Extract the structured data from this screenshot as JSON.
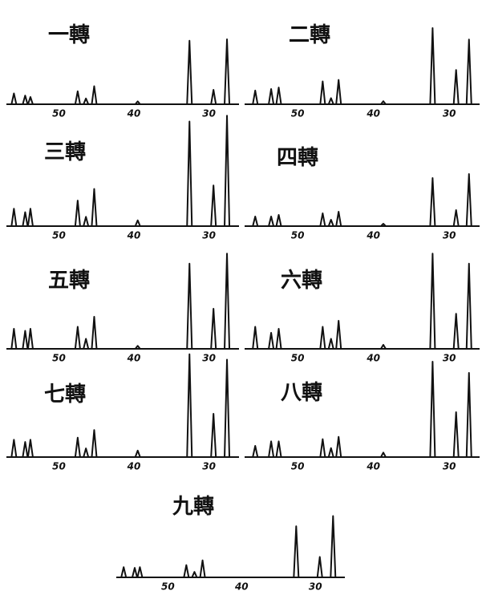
{
  "chart_data": [
    {
      "type": "spectrum",
      "title": "一轉",
      "x": [
        56,
        54.5,
        53.8,
        47.5,
        46.4,
        45.3,
        39.5,
        32.6,
        29.4,
        27.6
      ],
      "values": [
        15,
        12,
        10,
        18,
        8,
        25,
        4,
        88,
        20,
        90
      ],
      "xlim": [
        57,
        26
      ],
      "xticks": [
        50,
        40,
        30
      ],
      "ylim": [
        0,
        100
      ]
    },
    {
      "type": "spectrum",
      "title": "二轉",
      "x": [
        55.6,
        53.5,
        52.5,
        46.7,
        45.6,
        44.6,
        38.7,
        32.2,
        29.1,
        27.4
      ],
      "values": [
        18,
        20,
        22,
        30,
        8,
        32,
        4,
        100,
        45,
        85
      ],
      "xlim": [
        57,
        26
      ],
      "xticks": [
        50,
        40,
        30
      ],
      "ylim": [
        0,
        100
      ]
    },
    {
      "type": "spectrum",
      "title": "三轉",
      "x": [
        56,
        54.5,
        53.8,
        47.5,
        46.4,
        45.3,
        39.5,
        32.6,
        29.4,
        27.6
      ],
      "values": [
        15,
        12,
        15,
        22,
        8,
        32,
        5,
        90,
        35,
        95
      ],
      "xlim": [
        57,
        26
      ],
      "xticks": [
        50,
        40,
        30
      ],
      "ylim": [
        0,
        100
      ]
    },
    {
      "type": "spectrum",
      "title": "四轉",
      "x": [
        55.6,
        53.5,
        52.5,
        46.7,
        45.6,
        44.6,
        38.7,
        32.2,
        29.1,
        27.4
      ],
      "values": [
        12,
        12,
        14,
        16,
        8,
        18,
        3,
        60,
        20,
        65
      ],
      "xlim": [
        57,
        26
      ],
      "xticks": [
        50,
        40,
        30
      ],
      "ylim": [
        0,
        100
      ]
    },
    {
      "type": "spectrum",
      "title": "五轉",
      "x": [
        56,
        54.5,
        53.8,
        47.5,
        46.4,
        45.3,
        39.5,
        32.6,
        29.4,
        27.6
      ],
      "values": [
        20,
        18,
        20,
        22,
        10,
        32,
        3,
        85,
        40,
        95
      ],
      "xlim": [
        57,
        26
      ],
      "xticks": [
        50,
        40,
        30
      ],
      "ylim": [
        0,
        100
      ]
    },
    {
      "type": "spectrum",
      "title": "六轉",
      "x": [
        55.6,
        53.5,
        52.5,
        46.7,
        45.6,
        44.6,
        38.7,
        32.2,
        29.1,
        27.4
      ],
      "values": [
        22,
        16,
        20,
        22,
        10,
        28,
        4,
        95,
        35,
        85
      ],
      "xlim": [
        57,
        26
      ],
      "xticks": [
        50,
        40,
        30
      ],
      "ylim": [
        0,
        100
      ]
    },
    {
      "type": "spectrum",
      "title": "七轉",
      "x": [
        56,
        54.5,
        53.8,
        47.5,
        46.4,
        45.3,
        39.5,
        32.6,
        29.4,
        27.6
      ],
      "values": [
        16,
        14,
        16,
        18,
        8,
        25,
        6,
        95,
        40,
        90
      ],
      "xlim": [
        57,
        26
      ],
      "xticks": [
        50,
        40,
        30
      ],
      "ylim": [
        0,
        100
      ]
    },
    {
      "type": "spectrum",
      "title": "八轉",
      "x": [
        55.6,
        53.5,
        52.5,
        46.7,
        45.6,
        44.6,
        38.7,
        32.2,
        29.1,
        27.4
      ],
      "values": [
        10,
        14,
        14,
        16,
        8,
        18,
        4,
        85,
        40,
        75
      ],
      "xlim": [
        57,
        26
      ],
      "xticks": [
        50,
        40,
        30
      ],
      "ylim": [
        0,
        100
      ]
    },
    {
      "type": "spectrum",
      "title": "九轉",
      "x": [
        56,
        54.5,
        53.8,
        47.5,
        46.4,
        45.3,
        32.6,
        29.4,
        27.6
      ],
      "values": [
        15,
        14,
        15,
        18,
        8,
        25,
        75,
        30,
        90
      ],
      "xlim": [
        57,
        26
      ],
      "xticks": [
        50,
        40,
        30
      ],
      "ylim": [
        0,
        100
      ]
    }
  ]
}
